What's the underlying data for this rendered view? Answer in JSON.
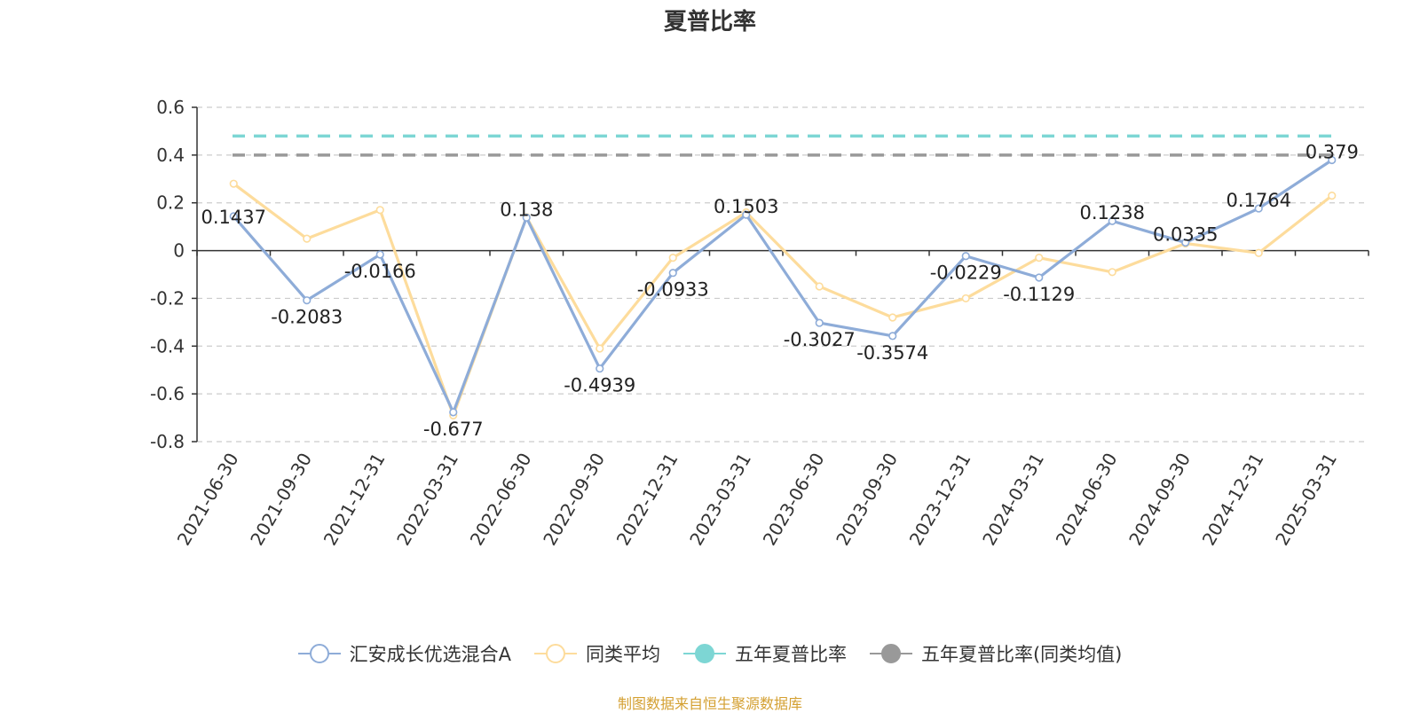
{
  "chart_data": {
    "type": "line",
    "title": "夏普比率",
    "categories": [
      "2021-06-30",
      "2021-09-30",
      "2021-12-31",
      "2022-03-31",
      "2022-06-30",
      "2022-09-30",
      "2022-12-31",
      "2023-03-31",
      "2023-06-30",
      "2023-09-30",
      "2023-12-31",
      "2024-03-31",
      "2024-06-30",
      "2024-09-30",
      "2024-12-31",
      "2025-03-31"
    ],
    "ylim": [
      -0.8,
      0.6
    ],
    "yticks": [
      "0.6",
      "0.4",
      "0.2",
      "0",
      "-0.2",
      "-0.4",
      "-0.6",
      "-0.8"
    ],
    "ytick_values": [
      0.6,
      0.4,
      0.2,
      0,
      -0.2,
      -0.4,
      -0.6,
      -0.8
    ],
    "grid": true,
    "legend_position": "bottom",
    "series": [
      {
        "name": "汇安成长优选混合A",
        "color": "#8eacd8",
        "values": [
          0.1437,
          -0.2083,
          -0.0166,
          -0.677,
          0.138,
          -0.4939,
          -0.0933,
          0.1503,
          -0.3027,
          -0.3574,
          -0.0229,
          -0.1129,
          0.1238,
          0.0335,
          0.1764,
          0.379
        ],
        "labels": [
          "0.1437",
          "-0.2083",
          "-0.0166",
          "-0.677",
          "0.138",
          "-0.4939",
          "-0.0933",
          "0.1503",
          "-0.3027",
          "-0.3574",
          "-0.0229",
          "-0.1129",
          "0.1238",
          "0.0335",
          "0.1764",
          "0.379"
        ]
      },
      {
        "name": "同类平均",
        "color": "#fddc9c",
        "values": [
          0.28,
          0.05,
          0.17,
          -0.69,
          0.14,
          -0.41,
          -0.03,
          0.16,
          -0.15,
          -0.28,
          -0.2,
          -0.03,
          -0.09,
          0.03,
          -0.01,
          0.23
        ]
      },
      {
        "name": "五年夏普比率",
        "color": "#7dd6d4",
        "constant": 0.48
      },
      {
        "name": "五年夏普比率(同类均值)",
        "color": "#999999",
        "constant": 0.4
      }
    ]
  },
  "source_note": "制图数据来自恒生聚源数据库"
}
